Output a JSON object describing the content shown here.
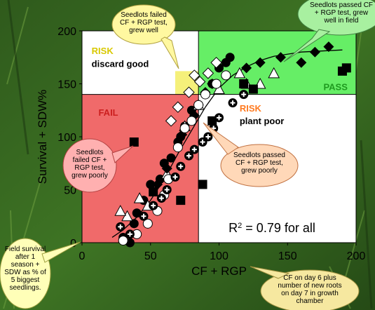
{
  "chart_data": {
    "type": "scatter",
    "xlabel": "CF + RGP",
    "ylabel": "Survival + SDW%",
    "xlim": [
      0,
      200
    ],
    "ylim": [
      0,
      200
    ],
    "xticks": [
      "0",
      "50",
      "100",
      "150",
      "200"
    ],
    "yticks": [
      "0",
      "50",
      "100",
      "150",
      "200"
    ],
    "thresholds": {
      "x": 85,
      "y": 140
    },
    "regions": {
      "pass": {
        "label": "PASS",
        "color": "#66ee66"
      },
      "fail": {
        "label": "FAIL",
        "color": "#f06a6a"
      },
      "risk_discard": {
        "label": "RISK",
        "sublabel": "discard good",
        "color": "#f5f07a"
      },
      "risk_plant": {
        "label": "RISK",
        "sublabel": "plant poor",
        "color": "#ff8a3c"
      }
    },
    "annotation": "R² = 0.79 for all",
    "series": [
      {
        "marker": "circle",
        "points": [
          [
            35,
            0
          ],
          [
            30,
            5
          ],
          [
            38,
            18
          ],
          [
            40,
            28
          ],
          [
            45,
            40
          ],
          [
            50,
            55
          ],
          [
            57,
            60
          ],
          [
            60,
            75
          ],
          [
            65,
            80
          ],
          [
            70,
            95
          ],
          [
            72,
            100
          ],
          [
            75,
            110
          ],
          [
            80,
            125
          ],
          [
            95,
            150
          ],
          [
            100,
            165
          ],
          [
            105,
            170
          ],
          [
            108,
            175
          ]
        ]
      },
      {
        "marker": "triangle",
        "points": [
          [
            33,
            25
          ],
          [
            28,
            30
          ],
          [
            42,
            42
          ],
          [
            48,
            35
          ],
          [
            62,
            65
          ],
          [
            75,
            110
          ],
          [
            85,
            130
          ],
          [
            100,
            145
          ],
          [
            115,
            160
          ],
          [
            120,
            150
          ],
          [
            130,
            150
          ],
          [
            140,
            160
          ]
        ]
      },
      {
        "marker": "diamond",
        "points": [
          [
            55,
            55
          ],
          [
            62,
            70
          ],
          [
            73,
            102
          ],
          [
            82,
            120
          ],
          [
            85,
            130
          ],
          [
            90,
            142
          ],
          [
            95,
            150
          ],
          [
            120,
            165
          ],
          [
            130,
            170
          ],
          [
            145,
            175
          ],
          [
            160,
            170
          ],
          [
            170,
            180
          ],
          [
            180,
            185
          ]
        ]
      },
      {
        "marker": "square",
        "points": [
          [
            38,
            95
          ],
          [
            52,
            48
          ],
          [
            72,
            40
          ],
          [
            88,
            55
          ],
          [
            95,
            115
          ],
          [
            118,
            150
          ],
          [
            125,
            145
          ],
          [
            190,
            162
          ],
          [
            193,
            165
          ]
        ]
      },
      {
        "marker": "open-circle",
        "points": [
          [
            30,
            2
          ],
          [
            40,
            8
          ],
          [
            48,
            18
          ],
          [
            55,
            30
          ],
          [
            60,
            45
          ],
          [
            63,
            60
          ],
          [
            70,
            90
          ],
          [
            75,
            108
          ],
          [
            80,
            115
          ],
          [
            85,
            130
          ],
          [
            90,
            140
          ],
          [
            98,
            150
          ],
          [
            105,
            158
          ]
        ]
      },
      {
        "marker": "cross-circle",
        "points": [
          [
            28,
            15
          ],
          [
            35,
            8
          ],
          [
            45,
            25
          ],
          [
            52,
            35
          ],
          [
            58,
            42
          ],
          [
            62,
            50
          ],
          [
            68,
            62
          ],
          [
            72,
            72
          ],
          [
            78,
            82
          ],
          [
            82,
            88
          ],
          [
            88,
            95
          ],
          [
            92,
            100
          ],
          [
            96,
            108
          ],
          [
            100,
            118
          ],
          [
            110,
            132
          ],
          [
            118,
            140
          ]
        ]
      },
      {
        "marker": "open-diamond",
        "points": [
          [
            65,
            115
          ],
          [
            70,
            128
          ],
          [
            78,
            142
          ],
          [
            82,
            158
          ],
          [
            86,
            152
          ],
          [
            92,
            160
          ],
          [
            98,
            170
          ]
        ]
      }
    ],
    "fit_curve": {
      "type": "logistic",
      "points": [
        [
          22,
          5
        ],
        [
          30,
          12
        ],
        [
          40,
          24
        ],
        [
          50,
          40
        ],
        [
          60,
          60
        ],
        [
          70,
          84
        ],
        [
          80,
          106
        ],
        [
          90,
          128
        ],
        [
          100,
          146
        ],
        [
          110,
          158
        ],
        [
          120,
          166
        ],
        [
          130,
          172
        ],
        [
          140,
          176
        ],
        [
          150,
          178
        ],
        [
          160,
          180
        ],
        [
          175,
          181
        ],
        [
          190,
          182
        ]
      ]
    }
  },
  "callouts": {
    "top_left": "Seedlots failed CF + RGP test, grew well",
    "top_right": "Seedlots passed CF + RGP test, grew well in field",
    "left": "Seedlots failed CF + RGP test, grew poorly",
    "middle_right": "Seedlots passed CF + RGP test, grew poorly",
    "bottom_left": "Field survival after 1 season + SDW as % of 5 biggest seedlings.",
    "bottom_right": "CF on day 6 plus number of new roots on day 7 in growth chamber"
  }
}
